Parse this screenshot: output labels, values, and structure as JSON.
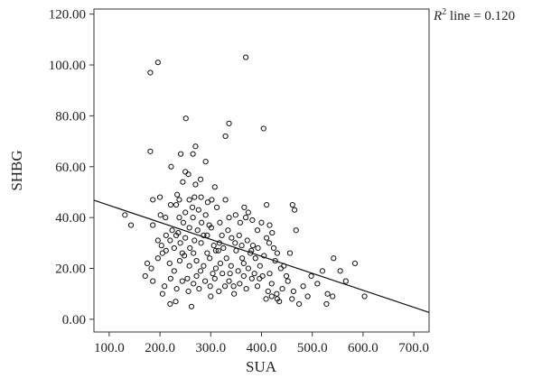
{
  "chart_data": {
    "type": "scatter",
    "title": "",
    "xlabel": "SUA",
    "ylabel": "SHBG",
    "xlim": [
      70,
      730
    ],
    "ylim": [
      -5,
      122
    ],
    "x_ticks": [
      "100.0",
      "200.0",
      "300.0",
      "400.0",
      "500.0",
      "600.0",
      "700.0"
    ],
    "y_ticks": [
      "0.00",
      "20.00",
      "40.00",
      "60.00",
      "80.00",
      "100.00",
      "120.00"
    ],
    "annotation": {
      "r_label": "R",
      "r_superscript": "2",
      "text": " line = 0.120"
    },
    "fit_line": {
      "x": [
        70,
        730
      ],
      "y": [
        46.8,
        2.7
      ]
    },
    "grid": false,
    "series": [
      {
        "marker": "open-circle",
        "points": [
          [
            181,
            97
          ],
          [
            196,
            101
          ],
          [
            369,
            103
          ],
          [
            404,
            75
          ],
          [
            251,
            79
          ],
          [
            336,
            77
          ],
          [
            329,
            72
          ],
          [
            181,
            66
          ],
          [
            270,
            68
          ],
          [
            265,
            65
          ],
          [
            241,
            65
          ],
          [
            290,
            62
          ],
          [
            250,
            58
          ],
          [
            280,
            55
          ],
          [
            256,
            57
          ],
          [
            245,
            54
          ],
          [
            270,
            53
          ],
          [
            308,
            52
          ],
          [
            200,
            48
          ],
          [
            234,
            49
          ],
          [
            221,
            45
          ],
          [
            238,
            47
          ],
          [
            258,
            47
          ],
          [
            281,
            48
          ],
          [
            294,
            46
          ],
          [
            302,
            47
          ],
          [
            312,
            44
          ],
          [
            329,
            47
          ],
          [
            349,
            41
          ],
          [
            366,
            44
          ],
          [
            374,
            42
          ],
          [
            382,
            39
          ],
          [
            410,
            45
          ],
          [
            461,
            45
          ],
          [
            465,
            43
          ],
          [
            131,
            41
          ],
          [
            143,
            37
          ],
          [
            186,
            37
          ],
          [
            201,
            41
          ],
          [
            211,
            40
          ],
          [
            232,
            45
          ],
          [
            238,
            40
          ],
          [
            250,
            42
          ],
          [
            265,
            40
          ],
          [
            276,
            43
          ],
          [
            290,
            41
          ],
          [
            301,
            36
          ],
          [
            318,
            38
          ],
          [
            336,
            40
          ],
          [
            358,
            38
          ],
          [
            369,
            40
          ],
          [
            400,
            38
          ],
          [
            416,
            37
          ],
          [
            421,
            34
          ],
          [
            468,
            35
          ],
          [
            196,
            31
          ],
          [
            203,
            29
          ],
          [
            212,
            27
          ],
          [
            220,
            31
          ],
          [
            232,
            33
          ],
          [
            240,
            30
          ],
          [
            250,
            32
          ],
          [
            259,
            28
          ],
          [
            268,
            31
          ],
          [
            281,
            30
          ],
          [
            293,
            33
          ],
          [
            306,
            29
          ],
          [
            317,
            30
          ],
          [
            325,
            28
          ],
          [
            341,
            32
          ],
          [
            350,
            27
          ],
          [
            361,
            29
          ],
          [
            380,
            27
          ],
          [
            393,
            28
          ],
          [
            410,
            32
          ],
          [
            424,
            28
          ],
          [
            431,
            26
          ],
          [
            175,
            22
          ],
          [
            183,
            20
          ],
          [
            196,
            24
          ],
          [
            205,
            26
          ],
          [
            219,
            22
          ],
          [
            228,
            19
          ],
          [
            239,
            23
          ],
          [
            248,
            25
          ],
          [
            258,
            21
          ],
          [
            266,
            26
          ],
          [
            272,
            23
          ],
          [
            286,
            21
          ],
          [
            298,
            24
          ],
          [
            310,
            20
          ],
          [
            319,
            22
          ],
          [
            331,
            24
          ],
          [
            340,
            21
          ],
          [
            354,
            19
          ],
          [
            365,
            22
          ],
          [
            374,
            20
          ],
          [
            388,
            24
          ],
          [
            397,
            21
          ],
          [
            416,
            18
          ],
          [
            427,
            23
          ],
          [
            438,
            20
          ],
          [
            449,
            17
          ],
          [
            171,
            17
          ],
          [
            186,
            15
          ],
          [
            209,
            13
          ],
          [
            221,
            16
          ],
          [
            233,
            12
          ],
          [
            244,
            15
          ],
          [
            256,
            11
          ],
          [
            266,
            14
          ],
          [
            277,
            12
          ],
          [
            289,
            15
          ],
          [
            299,
            13
          ],
          [
            308,
            16
          ],
          [
            316,
            11
          ],
          [
            328,
            13
          ],
          [
            336,
            15
          ],
          [
            346,
            10
          ],
          [
            357,
            14
          ],
          [
            370,
            12
          ],
          [
            381,
            16
          ],
          [
            392,
            13
          ],
          [
            402,
            17
          ],
          [
            413,
            11
          ],
          [
            420,
            9
          ],
          [
            431,
            8
          ],
          [
            441,
            12
          ],
          [
            452,
            15
          ],
          [
            463,
            11
          ],
          [
            474,
            6
          ],
          [
            482,
            13
          ],
          [
            498,
            17
          ],
          [
            510,
            14
          ],
          [
            520,
            19
          ],
          [
            530,
            10
          ],
          [
            542,
            24
          ],
          [
            555,
            19
          ],
          [
            566,
            15
          ],
          [
            584,
            22
          ],
          [
            603,
            9
          ],
          [
            540,
            9
          ],
          [
            528,
            6
          ],
          [
            430,
            10
          ],
          [
            345,
            13
          ],
          [
            362,
            24
          ],
          [
            262,
            5
          ],
          [
            231,
            7
          ],
          [
            205,
            10
          ],
          [
            220,
            6
          ],
          [
            491,
            9
          ],
          [
            460,
            8
          ],
          [
            280,
            19
          ],
          [
            274,
            35
          ],
          [
            258,
            36
          ],
          [
            246,
            38
          ],
          [
            236,
            34
          ],
          [
            228,
            28
          ],
          [
            268,
            48
          ],
          [
            282,
            38
          ],
          [
            293,
            26
          ],
          [
            304,
            18
          ],
          [
            315,
            27
          ],
          [
            322,
            33
          ],
          [
            334,
            35
          ],
          [
            348,
            30
          ],
          [
            356,
            33
          ],
          [
            372,
            31
          ],
          [
            383,
            29
          ],
          [
            392,
            35
          ],
          [
            405,
            25
          ],
          [
            415,
            30
          ],
          [
            444,
            21
          ],
          [
            456,
            26
          ],
          [
            224,
            35
          ],
          [
            212,
            33
          ],
          [
            186,
            47
          ],
          [
            222,
            60
          ],
          [
            264,
            44
          ],
          [
            286,
            33
          ],
          [
            297,
            37
          ],
          [
            244,
            26
          ],
          [
            254,
            16
          ],
          [
            272,
            17
          ],
          [
            300,
            9
          ],
          [
            310,
            27
          ],
          [
            323,
            18
          ],
          [
            338,
            18
          ],
          [
            365,
            17
          ],
          [
            378,
            26
          ],
          [
            386,
            18
          ],
          [
            396,
            16
          ],
          [
            409,
            8
          ],
          [
            420,
            14
          ],
          [
            435,
            7
          ]
        ]
      }
    ]
  }
}
